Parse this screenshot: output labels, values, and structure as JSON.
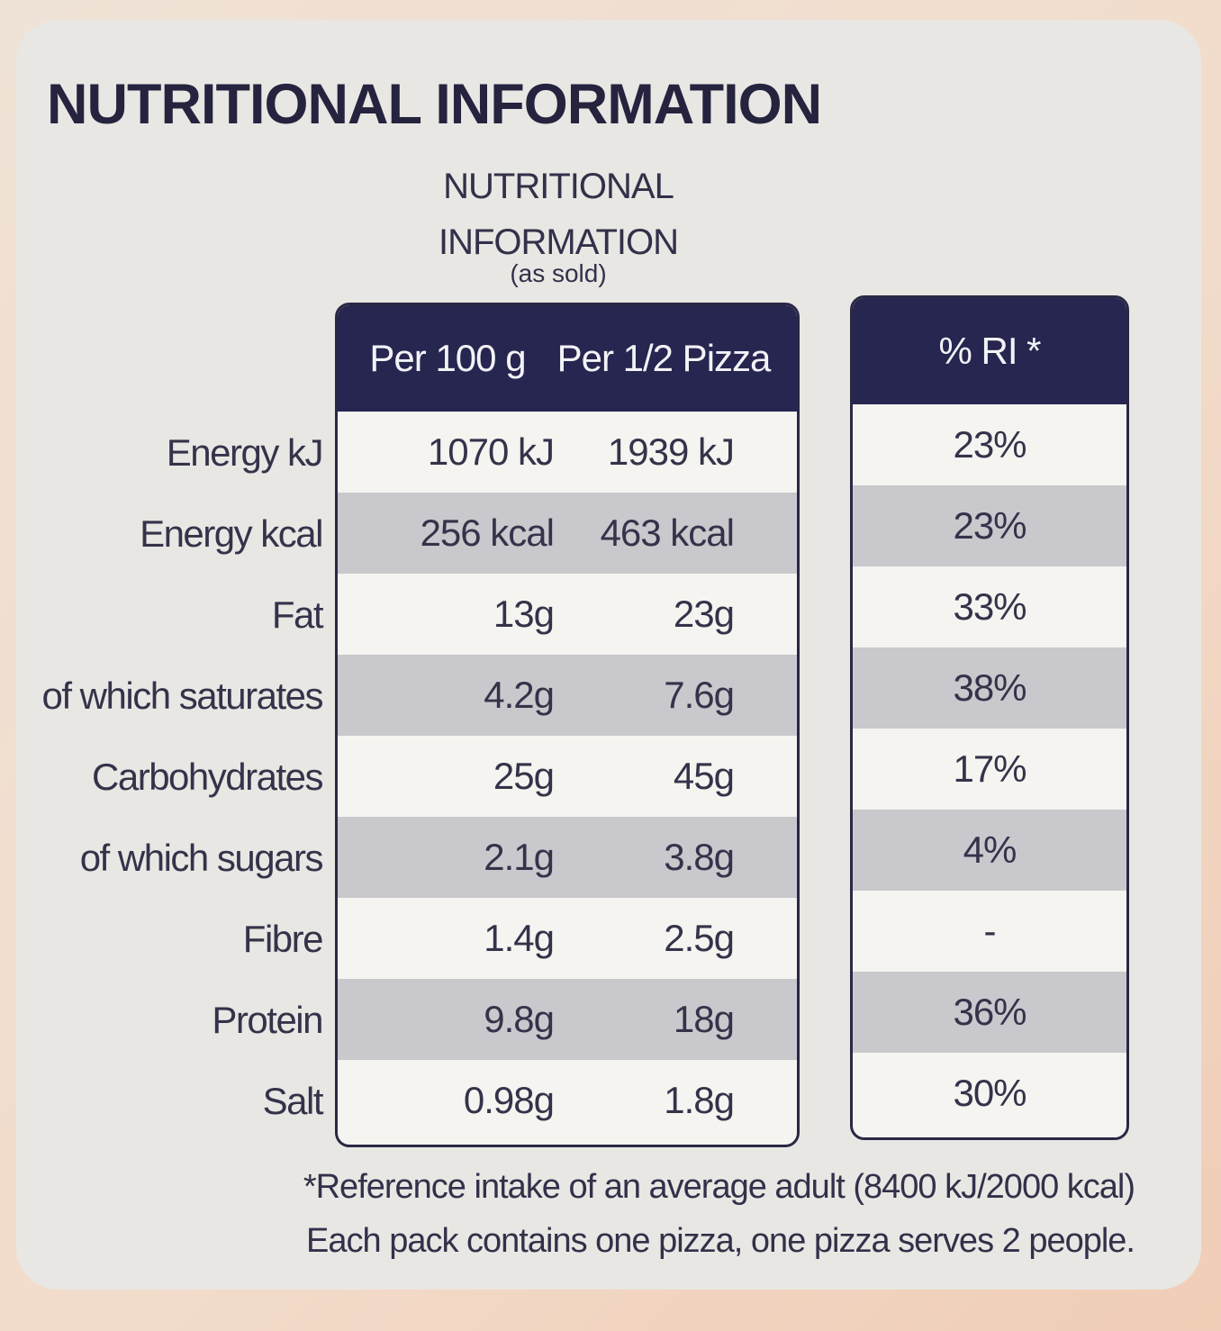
{
  "title": "NUTRITIONAL INFORMATION",
  "subtitle_line1": "NUTRITIONAL",
  "subtitle_line2": "INFORMATION",
  "subtitle_note": "(as sold)",
  "columns": {
    "per100": "Per 100 g",
    "perHalf": "Per 1/2 Pizza",
    "ri": "% RI *"
  },
  "rows": [
    {
      "label": "Energy kJ",
      "per100": "1070 kJ",
      "perHalf": "1939 kJ",
      "ri": "23%"
    },
    {
      "label": "Energy kcal",
      "per100": "256 kcal",
      "perHalf": "463 kcal",
      "ri": "23%"
    },
    {
      "label": "Fat",
      "per100": "13g",
      "perHalf": "23g",
      "ri": "33%"
    },
    {
      "label": "of which saturates",
      "per100": "4.2g",
      "perHalf": "7.6g",
      "ri": "38%"
    },
    {
      "label": "Carbohydrates",
      "per100": "25g",
      "perHalf": "45g",
      "ri": "17%"
    },
    {
      "label": "of which sugars",
      "per100": "2.1g",
      "perHalf": "3.8g",
      "ri": "4%"
    },
    {
      "label": "Fibre",
      "per100": "1.4g",
      "perHalf": "2.5g",
      "ri": "-"
    },
    {
      "label": "Protein",
      "per100": "9.8g",
      "perHalf": "18g",
      "ri": "36%"
    },
    {
      "label": "Salt",
      "per100": "0.98g",
      "perHalf": "1.8g",
      "ri": "30%"
    }
  ],
  "footnote_line1": "*Reference intake of an average adult (8400 kJ/2000 kcal)",
  "footnote_line2": "Each pack contains one pizza, one pizza serves 2 people."
}
